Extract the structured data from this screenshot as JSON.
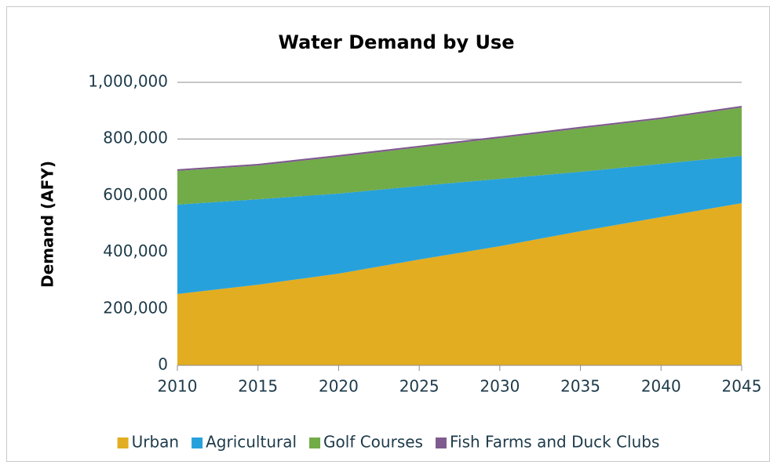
{
  "chart_data": {
    "type": "stacked-area",
    "title": "Water Demand by Use",
    "y_label": "Demand (AFY)",
    "x": [
      2010,
      2015,
      2020,
      2025,
      2030,
      2035,
      2040,
      2045
    ],
    "series": [
      {
        "name": "Urban",
        "color": "#e2ad20",
        "values": [
          252000,
          285000,
          324000,
          374000,
          421000,
          474000,
          524000,
          573000
        ]
      },
      {
        "name": "Agricultural",
        "color": "#27a1dc",
        "values": [
          316000,
          302000,
          283000,
          260000,
          238000,
          210000,
          188000,
          167000
        ]
      },
      {
        "name": "Golf Courses",
        "color": "#72ac48",
        "values": [
          119000,
          119000,
          130000,
          136000,
          144000,
          153000,
          158000,
          171000
        ]
      },
      {
        "name": "Fish Farms and Duck Clubs",
        "color": "#7f5a8f",
        "values": [
          6000,
          6000,
          6000,
          6000,
          6000,
          6000,
          6000,
          6000
        ]
      }
    ],
    "xlim": [
      2010,
      2045
    ],
    "xticks": [
      2010,
      2015,
      2020,
      2025,
      2030,
      2035,
      2040,
      2045
    ],
    "ylim": [
      0,
      1000000
    ],
    "yticks": [
      0,
      {
        "value": 200000,
        "label": "200,000"
      },
      {
        "value": 400000,
        "label": "400,000"
      },
      {
        "value": 600000,
        "label": "600,000"
      },
      {
        "value": 800000,
        "label": "800,000"
      },
      {
        "value": 1000000,
        "label": "1,000,000"
      }
    ],
    "grid": true,
    "legend": "bottom"
  }
}
